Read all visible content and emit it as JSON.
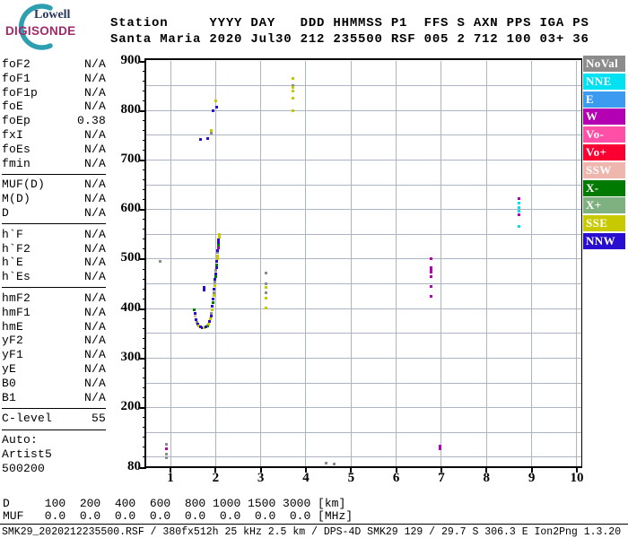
{
  "logo": {
    "line1": "Lowell",
    "line2": "DIGISONDE",
    "arc_color": "#2E9FB0"
  },
  "header": {
    "line1": "Station     YYYY DAY   DDD HHMMSS P1  FFS S AXN PPS IGA PS",
    "line2": "Santa Maria 2020 Jul30 212 235500 RSF 005 2 712 100 03+ 36"
  },
  "params": {
    "groups": [
      {
        "rows": [
          [
            "foF2",
            "N/A"
          ],
          [
            "foF1",
            "N/A"
          ],
          [
            "foF1p",
            "N/A"
          ],
          [
            "foE",
            "N/A"
          ],
          [
            "foEp",
            "0.38"
          ],
          [
            "fxI",
            "N/A"
          ],
          [
            "foEs",
            "N/A"
          ],
          [
            "fmin",
            "N/A"
          ]
        ]
      },
      {
        "rows": [
          [
            "MUF(D)",
            "N/A"
          ],
          [
            "M(D)",
            "N/A"
          ],
          [
            "D",
            "N/A"
          ]
        ]
      },
      {
        "rows": [
          [
            "h`F",
            "N/A"
          ],
          [
            "h`F2",
            "N/A"
          ],
          [
            "h`E",
            "N/A"
          ],
          [
            "h`Es",
            "N/A"
          ]
        ]
      },
      {
        "rows": [
          [
            "hmF2",
            "N/A"
          ],
          [
            "hmF1",
            "N/A"
          ],
          [
            "hmE",
            "N/A"
          ],
          [
            "yF2",
            "N/A"
          ],
          [
            "yF1",
            "N/A"
          ],
          [
            "yE",
            "N/A"
          ],
          [
            "B0",
            "N/A"
          ],
          [
            "B1",
            "N/A"
          ]
        ]
      },
      {
        "rows": [
          [
            "C-level",
            "55"
          ]
        ]
      },
      {
        "rows": [
          [
            "Auto:",
            ""
          ],
          [
            "Artist5",
            ""
          ],
          [
            "500200",
            ""
          ]
        ]
      }
    ]
  },
  "legend": {
    "items": [
      {
        "label": "NoVal",
        "color": "#8C8C8C"
      },
      {
        "label": "NNE",
        "color": "#00E1F2"
      },
      {
        "label": "E",
        "color": "#3D9BEF"
      },
      {
        "label": "W",
        "color": "#B300B3"
      },
      {
        "label": "Vo-",
        "color": "#FF4FA7"
      },
      {
        "label": "Vo+",
        "color": "#FA0032"
      },
      {
        "label": "SSW",
        "color": "#EFB6AE"
      },
      {
        "label": "X-",
        "color": "#017A01"
      },
      {
        "label": "X+",
        "color": "#7FB07F"
      },
      {
        "label": "SSE",
        "color": "#C9C900"
      },
      {
        "label": "NNW",
        "color": "#2A0ECF"
      }
    ]
  },
  "chart_data": {
    "type": "scatter",
    "title": "",
    "xlabel": "[MHz]",
    "ylabel": "[km]",
    "xlim": [
      0.46,
      10.1
    ],
    "ylim": [
      80,
      900
    ],
    "x_ticks": [
      1,
      2,
      3,
      4,
      5,
      6,
      7,
      8,
      9,
      10
    ],
    "y_ticks": [
      900,
      800,
      700,
      600,
      500,
      400,
      300,
      200,
      80
    ],
    "y_grid_step": 50,
    "y_minor_tick_step": 20,
    "grid": true,
    "legend_position": "right",
    "colors": {
      "NoVal": "#8C8C8C",
      "NNE": "#00E1F2",
      "E": "#3D9BEF",
      "W": "#B300B3",
      "Vo-": "#FF4FA7",
      "Vo+": "#FA0032",
      "SSW": "#EFB6AE",
      "X-": "#017A01",
      "X+": "#7FB07F",
      "SSE": "#C9C900",
      "NNW": "#2A0ECF"
    },
    "points": [
      [
        1.53,
        396,
        "X-"
      ],
      [
        1.54,
        390,
        "NNW"
      ],
      [
        1.55,
        384,
        "SSW"
      ],
      [
        1.56,
        377,
        "NNW"
      ],
      [
        1.58,
        371,
        "NoVal"
      ],
      [
        1.6,
        367,
        "NNW"
      ],
      [
        1.63,
        364,
        "SSE"
      ],
      [
        1.66,
        362,
        "NNW"
      ],
      [
        1.7,
        361,
        "NNW"
      ],
      [
        1.74,
        361,
        "SSE"
      ],
      [
        1.78,
        362,
        "NNW"
      ],
      [
        1.82,
        365,
        "X-"
      ],
      [
        1.85,
        368,
        "SSE"
      ],
      [
        1.87,
        373,
        "NNW"
      ],
      [
        1.88,
        378,
        "SSE"
      ],
      [
        1.9,
        384,
        "NNW"
      ],
      [
        1.91,
        390,
        "NoVal"
      ],
      [
        1.92,
        397,
        "SSE"
      ],
      [
        1.93,
        404,
        "NNW"
      ],
      [
        1.94,
        411,
        "X-"
      ],
      [
        1.95,
        418,
        "NNW"
      ],
      [
        1.96,
        425,
        "SSE"
      ],
      [
        1.97,
        432,
        "NoVal"
      ],
      [
        1.97,
        439,
        "NNW"
      ],
      [
        1.98,
        446,
        "SSE"
      ],
      [
        1.99,
        452,
        "NoVal"
      ],
      [
        1.99,
        458,
        "NNW"
      ],
      [
        2.0,
        464,
        "X-"
      ],
      [
        2.01,
        470,
        "NNW"
      ],
      [
        2.01,
        476,
        "NoVal"
      ],
      [
        2.02,
        482,
        "NNW"
      ],
      [
        2.03,
        488,
        "X-"
      ],
      [
        2.03,
        494,
        "NNW"
      ],
      [
        2.04,
        500,
        "SSE"
      ],
      [
        2.04,
        506,
        "SSE"
      ],
      [
        2.05,
        512,
        "NoVal"
      ],
      [
        2.05,
        517,
        "NNW"
      ],
      [
        2.06,
        522,
        "W"
      ],
      [
        2.06,
        527,
        "X-"
      ],
      [
        2.07,
        533,
        "NNW"
      ],
      [
        2.07,
        538,
        "NNW"
      ],
      [
        2.08,
        544,
        "SSE"
      ],
      [
        2.08,
        549,
        "SSE"
      ],
      [
        1.74,
        442,
        "NNW"
      ],
      [
        1.74,
        437,
        "NNW"
      ],
      [
        1.66,
        740,
        "NNW"
      ],
      [
        1.83,
        742,
        "NNW"
      ],
      [
        1.91,
        753,
        "NoVal"
      ],
      [
        1.91,
        759,
        "SSE"
      ],
      [
        1.95,
        799,
        "NNW"
      ],
      [
        2.03,
        806,
        "NNW"
      ],
      [
        2.01,
        818,
        "SSE"
      ],
      [
        3.72,
        864,
        "SSE"
      ],
      [
        3.72,
        849,
        "NoVal"
      ],
      [
        3.72,
        846,
        "SSE"
      ],
      [
        3.72,
        838,
        "SSE"
      ],
      [
        3.72,
        824,
        "SSE"
      ],
      [
        3.72,
        799,
        "SSE"
      ],
      [
        3.11,
        471,
        "NoVal"
      ],
      [
        3.11,
        449,
        "NoVal"
      ],
      [
        3.11,
        442,
        "SSE"
      ],
      [
        3.11,
        431,
        "NoVal"
      ],
      [
        3.11,
        420,
        "SSE"
      ],
      [
        3.11,
        400,
        "SSE"
      ],
      [
        6.78,
        500,
        "W"
      ],
      [
        6.78,
        482,
        "W"
      ],
      [
        6.78,
        477,
        "W"
      ],
      [
        6.78,
        473,
        "W"
      ],
      [
        6.78,
        464,
        "W"
      ],
      [
        6.78,
        444,
        "W"
      ],
      [
        6.78,
        424,
        "W"
      ],
      [
        6.98,
        121,
        "W"
      ],
      [
        6.98,
        117,
        "W"
      ],
      [
        8.71,
        621,
        "W"
      ],
      [
        8.71,
        612,
        "NNE"
      ],
      [
        8.71,
        603,
        "NNE"
      ],
      [
        8.71,
        596,
        "NNE"
      ],
      [
        8.71,
        589,
        "W"
      ],
      [
        8.71,
        565,
        "NNE"
      ],
      [
        4.45,
        87,
        "NoVal"
      ],
      [
        4.62,
        85,
        "NoVal"
      ],
      [
        0.78,
        494,
        "NoVal"
      ],
      [
        0.92,
        125,
        "NoVal"
      ],
      [
        0.92,
        116,
        "W"
      ],
      [
        0.92,
        105,
        "NoVal"
      ],
      [
        0.92,
        98,
        "NoVal"
      ]
    ]
  },
  "footer": {
    "d_row": "D     100  200  400  600  800 1000 1500 3000 [km]",
    "muf_row": "MUF   0.0  0.0  0.0  0.0  0.0  0.0  0.0  0.0 [MHz]",
    "info": "SMK29_2020212235500.RSF / 380fx512h 25 kHz 2.5 km / DPS-4D SMK29 129 / 29.7 S 306.3 E Ion2Png 1.3.20"
  }
}
